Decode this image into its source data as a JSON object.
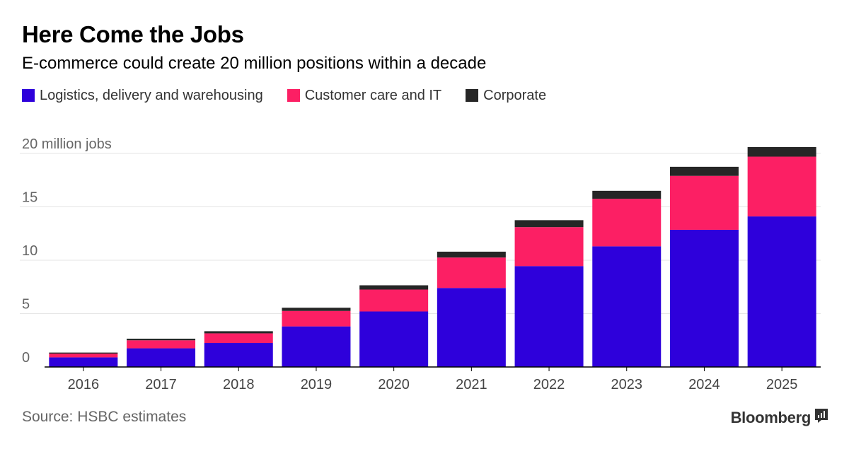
{
  "header": {
    "title": "Here Come the Jobs",
    "subtitle": "E-commerce could create 20 million positions within a decade"
  },
  "legend": [
    {
      "label": "Logistics, delivery and warehousing",
      "color": "#2e00db"
    },
    {
      "label": "Customer care and IT",
      "color": "#fc1f64"
    },
    {
      "label": "Corporate",
      "color": "#262626"
    }
  ],
  "footer": {
    "source": "Source: HSBC estimates",
    "brand": "Bloomberg",
    "brand_icon": "bloomberg-terminal-icon"
  },
  "chart_data": {
    "type": "bar",
    "stacked": true,
    "categories": [
      "2016",
      "2017",
      "2018",
      "2019",
      "2020",
      "2021",
      "2022",
      "2023",
      "2024",
      "2025"
    ],
    "series": [
      {
        "name": "Logistics, delivery and warehousing",
        "color": "#2e00db",
        "values": [
          0.9,
          1.75,
          2.25,
          3.8,
          5.2,
          7.4,
          9.45,
          11.3,
          12.85,
          14.1
        ]
      },
      {
        "name": "Customer care and IT",
        "color": "#fc1f64",
        "values": [
          0.35,
          0.75,
          0.9,
          1.45,
          2.05,
          2.85,
          3.65,
          4.45,
          5.05,
          5.6
        ]
      },
      {
        "name": "Corporate",
        "color": "#262626",
        "values": [
          0.1,
          0.15,
          0.2,
          0.3,
          0.4,
          0.55,
          0.65,
          0.75,
          0.85,
          0.9
        ]
      }
    ],
    "yticks": [
      "0",
      "5",
      "10",
      "15",
      "20 million jobs"
    ],
    "ytick_values": [
      0,
      5,
      10,
      15,
      20
    ],
    "ylim": [
      0,
      20.5
    ],
    "grid": true,
    "legend_position": "top-left"
  }
}
